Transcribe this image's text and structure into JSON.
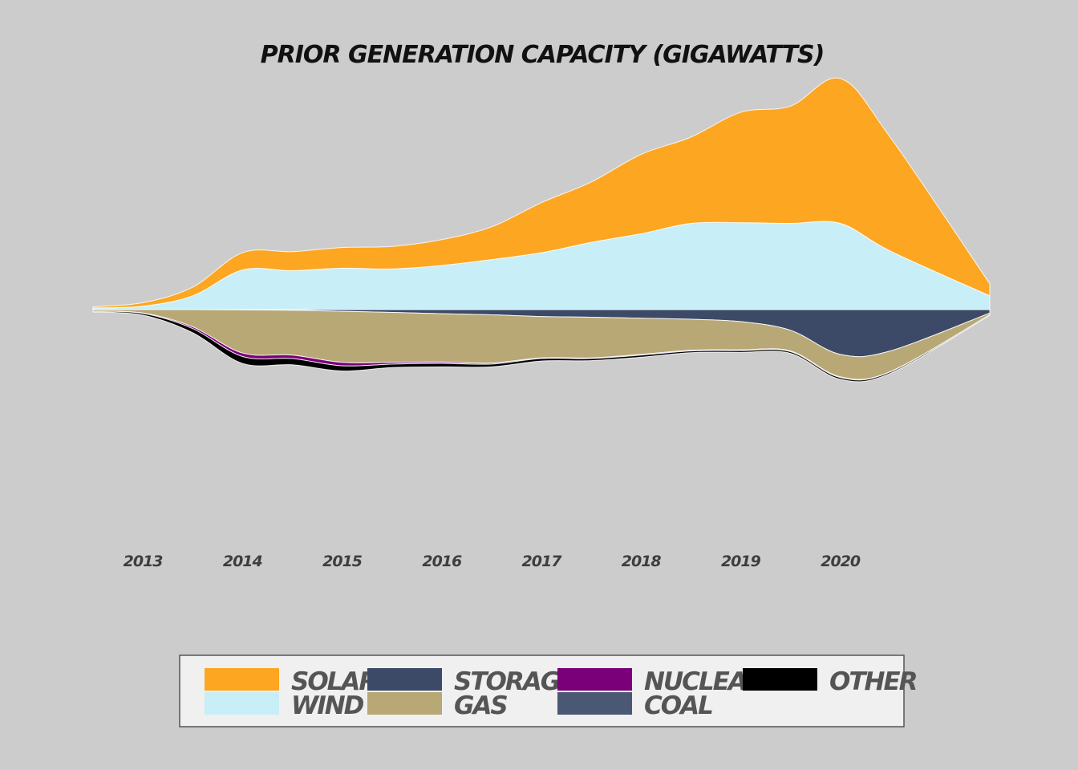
{
  "chart_data": {
    "type": "area",
    "subtype": "streamgraph",
    "title": "Prior Generation Capacity (Gigawatts)",
    "xlabel": "",
    "ylabel": "",
    "x": [
      2012.5,
      2013,
      2013.5,
      2014,
      2014.5,
      2015,
      2015.5,
      2016,
      2016.5,
      2017,
      2017.5,
      2018,
      2018.5,
      2019,
      2019.5,
      2020,
      2020.5,
      2021.5
    ],
    "x_ticks": [
      2013,
      2014,
      2015,
      2016,
      2017,
      2018,
      2019,
      2020
    ],
    "x_tick_labels": [
      "2013",
      "2014",
      "2015",
      "2016",
      "2017",
      "2018",
      "2019",
      "2020"
    ],
    "xlim": [
      2012.5,
      2021.5
    ],
    "grid": false,
    "legend": "bottom-center",
    "series": [
      {
        "name": "Solar",
        "color": "#fca622",
        "values": [
          0.3,
          1.0,
          2.5,
          5.0,
          5.5,
          6.0,
          6.5,
          7.5,
          9.5,
          14.5,
          17.5,
          23.0,
          25.0,
          32.0,
          34.0,
          42.0,
          33.0,
          3.5
        ]
      },
      {
        "name": "Wind",
        "color": "#c8eef7",
        "values": [
          0.5,
          1.0,
          4.0,
          11.5,
          11.3,
          12.0,
          11.8,
          12.8,
          14.5,
          16.5,
          19.5,
          22.0,
          25.0,
          25.2,
          25.0,
          25.0,
          17.0,
          4.0
        ]
      },
      {
        "name": "Storage",
        "color": "#3c4a67",
        "values": [
          0,
          0,
          0,
          0.1,
          0.2,
          0.5,
          0.8,
          1.2,
          1.5,
          2.0,
          2.2,
          2.5,
          2.8,
          3.5,
          6.0,
          13.0,
          12.0,
          1.0
        ]
      },
      {
        "name": "Gas",
        "color": "#b8a876",
        "values": [
          0.5,
          1.0,
          5.0,
          12.5,
          13.0,
          14.8,
          14.5,
          14.0,
          14.0,
          12.0,
          11.8,
          10.5,
          9.0,
          8.2,
          6.0,
          6.5,
          6.0,
          0.5
        ]
      },
      {
        "name": "Nuclear",
        "color": "#7a007a",
        "values": [
          0,
          0.1,
          0.5,
          1.0,
          1.0,
          1.0,
          0.5,
          0.4,
          0.3,
          0.2,
          0.2,
          0.2,
          0.2,
          0.2,
          0.2,
          0.2,
          0.1,
          0
        ]
      },
      {
        "name": "Coal",
        "color": "#4a5873",
        "values": [
          0,
          0,
          0,
          0,
          0,
          0,
          0,
          0,
          0,
          0,
          0,
          0,
          0,
          0,
          0,
          0,
          0,
          0
        ]
      },
      {
        "name": "Other",
        "color": "#000000",
        "values": [
          0.2,
          0.5,
          1.2,
          2.0,
          1.8,
          1.5,
          1.0,
          1.0,
          0.8,
          0.7,
          0.6,
          0.6,
          0.5,
          0.5,
          0.5,
          0.5,
          0.4,
          0.2
        ]
      }
    ]
  }
}
